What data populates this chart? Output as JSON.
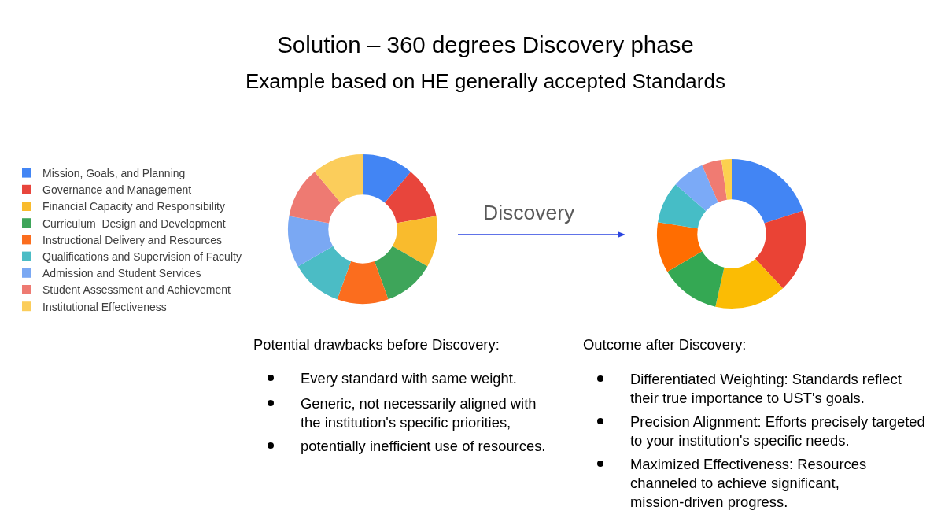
{
  "chart_data": {
    "type": "donut",
    "title": "Solution – 360 degrees Discovery phase",
    "subtitle": "Example based on HE generally accepted Standards",
    "categories": [
      "Mission, Goals, and Planning",
      "Governance and Management",
      "Financial Capacity and Responsibility",
      "Curriculum  Design and Development",
      "Instructional Delivery and Resources",
      "Qualifications and Supervision of Faculty",
      "Admission and Student Services",
      "Student Assessment and Achievement",
      "Institutional Effectiveness"
    ],
    "series": [
      {
        "values": [
          11.11,
          11.11,
          11.11,
          11.11,
          11.11,
          11.11,
          11.11,
          11.11,
          11.12
        ],
        "colors": [
          "#4285f4",
          "#e8453c",
          "#f9bb2d",
          "#3ea55a",
          "#fb6d1e",
          "#4bbcc5",
          "#7aa8f3",
          "#ee7a72",
          "#fbcd5b"
        ]
      },
      {
        "values": [
          20,
          18,
          15.5,
          13,
          11,
          9,
          7,
          4.3,
          2.2
        ],
        "colors": [
          "#4285f4",
          "#ea4335",
          "#fbbc04",
          "#34a853",
          "#ff6d01",
          "#46bdc6",
          "#7baaf7",
          "#f07b72",
          "#fcd04f"
        ]
      }
    ],
    "legend": "left",
    "annotations": [
      "Discovery",
      "Potential drawbacks before Discovery:",
      "Every standard with same weight.",
      "Generic, not necessarily aligned with\nthe institution's specific priorities,",
      "potentially inefficient use of resources.",
      "Outcome after Discovery:",
      "Differentiated Weighting: Standards reflect\ntheir true importance to UST's goals.",
      "Precision Alignment: Efforts precisely targeted\nto your institution's specific needs.",
      "Maximized Effectiveness: Resources\nchanneled to achieve significant,\nmission-driven progress."
    ]
  }
}
